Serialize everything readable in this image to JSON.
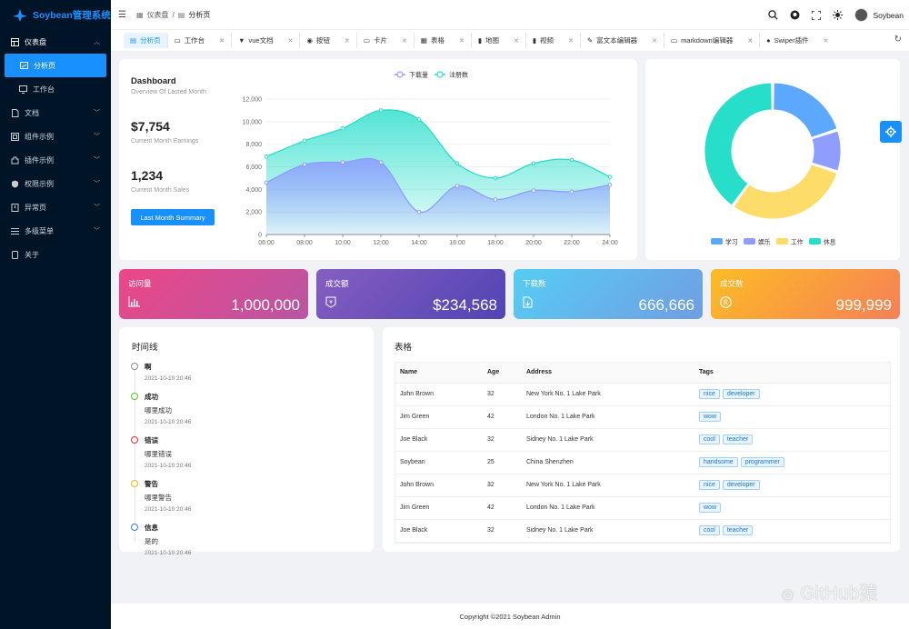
{
  "app": {
    "title": "Soybean管理系统"
  },
  "sidebar": {
    "items": [
      {
        "label": "仪表盘",
        "icon": "dashboard-icon"
      },
      {
        "label": "分析页",
        "icon": "analysis-icon"
      },
      {
        "label": "工作台",
        "icon": "monitor-icon"
      },
      {
        "label": "文档",
        "icon": "document-icon"
      },
      {
        "label": "组件示例",
        "icon": "component-icon"
      },
      {
        "label": "插件示例",
        "icon": "plugin-icon"
      },
      {
        "label": "权限示例",
        "icon": "shield-icon"
      },
      {
        "label": "异常页",
        "icon": "exception-icon"
      },
      {
        "label": "多级菜单",
        "icon": "menu-icon"
      },
      {
        "label": "关于",
        "icon": "about-icon"
      }
    ]
  },
  "header": {
    "breadcrumb": [
      "仪表盘",
      "分析页"
    ],
    "user": "Soybean"
  },
  "tabs": [
    "分析页",
    "工作台",
    "vue文档",
    "按钮",
    "卡片",
    "表格",
    "地图",
    "视频",
    "富文本编辑器",
    "markdown编辑器",
    "Swiper插件"
  ],
  "dashboard": {
    "title": "Dashboard",
    "subtitle": "Overview Of Lasted Month",
    "earnings": "$7,754",
    "earnings_label": "Current Month Earnings",
    "sales": "1,234",
    "sales_label": "Current Month Sales",
    "button": "Last Month Summary"
  },
  "chart_data": [
    {
      "type": "area",
      "categories": [
        "06:00",
        "08:00",
        "10:00",
        "12:00",
        "14:00",
        "16:00",
        "18:00",
        "20:00",
        "22:00",
        "24:00"
      ],
      "series": [
        {
          "name": "下载量",
          "values": [
            4600,
            6200,
            6400,
            6400,
            2000,
            4300,
            3100,
            3900,
            3800,
            4400
          ]
        },
        {
          "name": "注册数",
          "values": [
            6900,
            8300,
            9400,
            11000,
            10200,
            6300,
            5000,
            6300,
            6600,
            5100
          ]
        }
      ],
      "ylim": [
        0,
        12000
      ],
      "yticks": [
        "0",
        "2,000",
        "4,000",
        "6,000",
        "8,000",
        "10,000",
        "12,000"
      ],
      "legend": "top",
      "colors": [
        "#8e9dff",
        "#26deca"
      ]
    },
    {
      "type": "pie",
      "categories": [
        "学习",
        "娱乐",
        "工作",
        "休息"
      ],
      "values": [
        20,
        10,
        30,
        40
      ],
      "colors": [
        "#5da8ff",
        "#8e9dff",
        "#fedc69",
        "#26deca"
      ],
      "legend": "bottom"
    }
  ],
  "stats": [
    {
      "label": "访问量",
      "value": "1,000,000",
      "icon": "bar-chart-icon"
    },
    {
      "label": "成交额",
      "value": "$234,568",
      "icon": "yen-icon"
    },
    {
      "label": "下载数",
      "value": "666,666",
      "icon": "download-icon"
    },
    {
      "label": "成交数",
      "value": "999,999",
      "icon": "registered-icon"
    }
  ],
  "timeline": {
    "title": "时间线",
    "items": [
      {
        "title": "啊",
        "content": "",
        "time": "2021-10-10 20:46",
        "color": "#888888"
      },
      {
        "title": "成功",
        "content": "哪里成功",
        "time": "2021-10-10 20:46",
        "color": "#52c41a"
      },
      {
        "title": "错误",
        "content": "哪里错误",
        "time": "2021-10-10 20:46",
        "color": "#f5222d"
      },
      {
        "title": "警告",
        "content": "哪里警告",
        "time": "2021-10-10 20:46",
        "color": "#faad14"
      },
      {
        "title": "信息",
        "content": "是的",
        "time": "2021-10-10 20:46",
        "color": "#2d7ad7"
      }
    ]
  },
  "table": {
    "title": "表格",
    "columns": [
      "Name",
      "Age",
      "Address",
      "Tags"
    ],
    "rows": [
      {
        "name": "John Brown",
        "age": "32",
        "address": "New York No. 1 Lake Park",
        "tags": [
          "nice",
          "developer"
        ]
      },
      {
        "name": "Jim Green",
        "age": "42",
        "address": "London No. 1 Lake Park",
        "tags": [
          "wow"
        ]
      },
      {
        "name": "Joe Black",
        "age": "32",
        "address": "Sidney No. 1 Lake Park",
        "tags": [
          "cool",
          "teacher"
        ]
      },
      {
        "name": "Soybean",
        "age": "25",
        "address": "China Shenzhen",
        "tags": [
          "handsome",
          "programmer"
        ]
      },
      {
        "name": "John Brown",
        "age": "32",
        "address": "New York No. 1 Lake Park",
        "tags": [
          "nice",
          "developer"
        ]
      },
      {
        "name": "Jim Green",
        "age": "42",
        "address": "London No. 1 Lake Park",
        "tags": [
          "wow"
        ]
      },
      {
        "name": "Joe Black",
        "age": "32",
        "address": "Sidney No. 1 Lake Park",
        "tags": [
          "cool",
          "teacher"
        ]
      }
    ]
  },
  "footer": "Copyright ©2021 Soybean Admin",
  "watermark": "GitHub猿"
}
